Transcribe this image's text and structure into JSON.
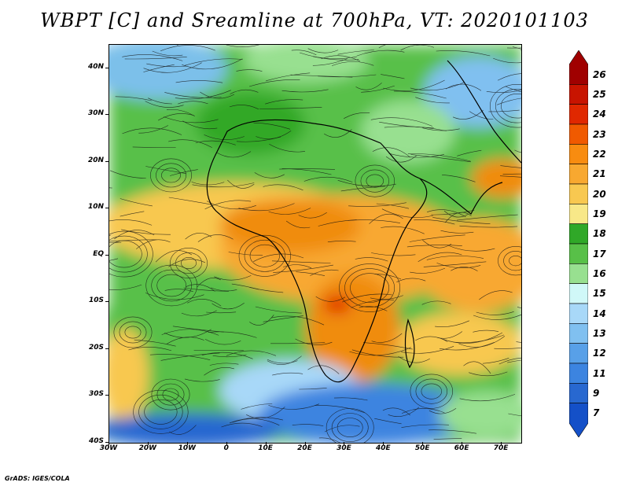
{
  "title": "WBPT [C] and Sreamline at 700hPa, VT: 2020101103",
  "credit": "GrADS: IGES/COLA",
  "map": {
    "lat_ticks": [
      "40N",
      "30N",
      "20N",
      "10N",
      "EQ",
      "10S",
      "20S",
      "30S",
      "40S"
    ],
    "lat_values": [
      40,
      30,
      20,
      10,
      0,
      -10,
      -20,
      -30,
      -40
    ],
    "lon_ticks": [
      "30W",
      "20W",
      "10W",
      "0",
      "10E",
      "20E",
      "30E",
      "40E",
      "50E",
      "60E",
      "70E"
    ],
    "lon_values": [
      -30,
      -20,
      -10,
      0,
      10,
      20,
      30,
      40,
      50,
      60,
      70
    ],
    "lon_range": [
      -30,
      75
    ],
    "lat_range": [
      -40,
      45
    ]
  },
  "colorbar": {
    "labels": [
      "26",
      "25",
      "24",
      "23",
      "22",
      "21",
      "20",
      "19",
      "18",
      "17",
      "16",
      "15",
      "14",
      "13",
      "12",
      "11",
      "9",
      "7"
    ],
    "colors": [
      "#a00000",
      "#c81400",
      "#e02800",
      "#f05a00",
      "#f88c10",
      "#f8a830",
      "#f8c850",
      "#f8e888",
      "#30a828",
      "#58c048",
      "#98e090",
      "#d0f8f8",
      "#a8d8f8",
      "#80c0f0",
      "#58a0e8",
      "#3c84e0",
      "#2868d0",
      "#1450c8"
    ]
  },
  "colors": {
    "cold_deep": "#1e5ad2",
    "cold": "#5aa0e8",
    "cool": "#a8d8f8",
    "mild": "#58c048",
    "warm": "#f8c850",
    "hot": "#f08c10",
    "very_hot": "#e03000"
  }
}
